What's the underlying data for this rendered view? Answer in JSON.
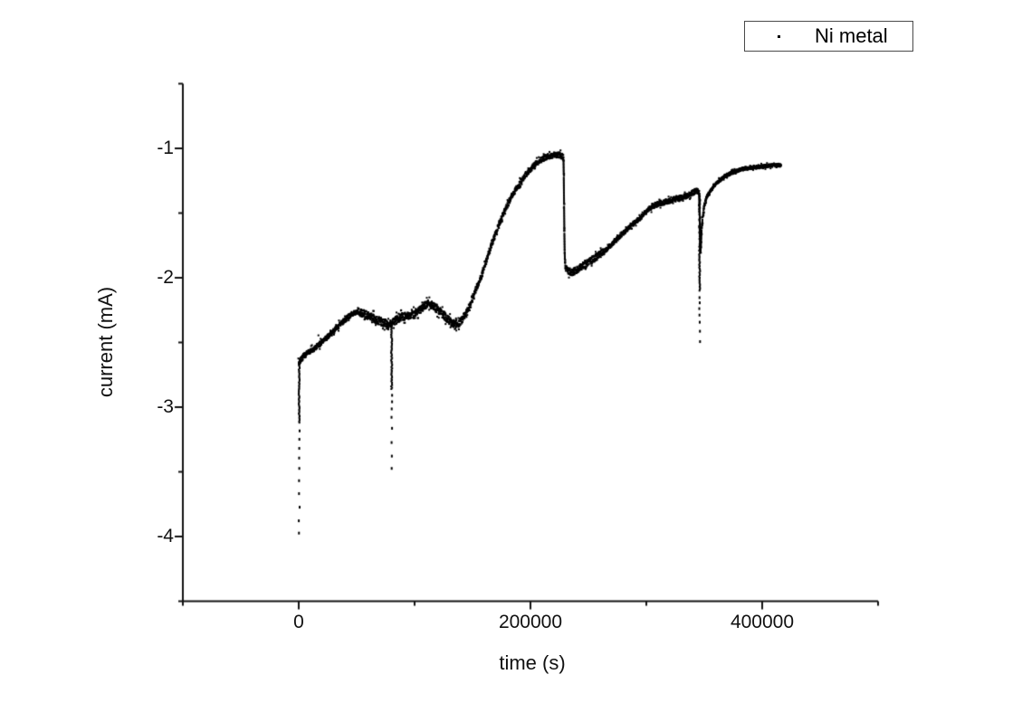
{
  "chart_data": {
    "type": "scatter",
    "title": "",
    "xlabel": "time (s)",
    "ylabel": "current (mA)",
    "xlim": [
      -100000,
      500000
    ],
    "ylim": [
      -4.5,
      -0.5
    ],
    "grid": false,
    "background": "#ffffff",
    "axis_color": "#131313",
    "point_color": "#000000",
    "marker": "small-square",
    "marker_size_px": 2,
    "x_ticks": {
      "major_values": [
        0,
        200000,
        400000
      ],
      "major_labels": [
        "0",
        "200000",
        "400000"
      ],
      "minor_values": [
        -100000,
        100000,
        300000,
        500000
      ]
    },
    "y_ticks": {
      "major_values": [
        -1,
        -2,
        -3,
        -4
      ],
      "major_labels": [
        "-1",
        "-2",
        "-3",
        "-4"
      ],
      "minor_values": [
        -0.5,
        -1.5,
        -2.5,
        -3.5,
        -4.5
      ]
    },
    "legend": {
      "label": "Ni metal",
      "position": "top-right",
      "boxed": true,
      "marker_color": "#000000"
    },
    "series": [
      {
        "name": "Ni metal",
        "keypoints": [
          [
            0,
            -2.66
          ],
          [
            2000,
            -2.63
          ],
          [
            5000,
            -2.6
          ],
          [
            9000,
            -2.575
          ],
          [
            13000,
            -2.55
          ],
          [
            17000,
            -2.52
          ],
          [
            21000,
            -2.49
          ],
          [
            25000,
            -2.455
          ],
          [
            29000,
            -2.42
          ],
          [
            33000,
            -2.385
          ],
          [
            37000,
            -2.35
          ],
          [
            41000,
            -2.32
          ],
          [
            45000,
            -2.29
          ],
          [
            48000,
            -2.27
          ],
          [
            51000,
            -2.26
          ],
          [
            54000,
            -2.27
          ],
          [
            58000,
            -2.285
          ],
          [
            62000,
            -2.3
          ],
          [
            66000,
            -2.32
          ],
          [
            70000,
            -2.335
          ],
          [
            74000,
            -2.35
          ],
          [
            78500,
            -2.36
          ],
          [
            81500,
            -2.34
          ],
          [
            86000,
            -2.315
          ],
          [
            90000,
            -2.3
          ],
          [
            95000,
            -2.29
          ],
          [
            100000,
            -2.275
          ],
          [
            104000,
            -2.25
          ],
          [
            108000,
            -2.22
          ],
          [
            112000,
            -2.2
          ],
          [
            116000,
            -2.215
          ],
          [
            120000,
            -2.245
          ],
          [
            124000,
            -2.28
          ],
          [
            128000,
            -2.315
          ],
          [
            131500,
            -2.345
          ],
          [
            135000,
            -2.36
          ],
          [
            138000,
            -2.355
          ],
          [
            141000,
            -2.33
          ],
          [
            145000,
            -2.27
          ],
          [
            149000,
            -2.185
          ],
          [
            153000,
            -2.09
          ],
          [
            157000,
            -2.0
          ],
          [
            161000,
            -1.9
          ],
          [
            165000,
            -1.78
          ],
          [
            169000,
            -1.68
          ],
          [
            173000,
            -1.585
          ],
          [
            177000,
            -1.5
          ],
          [
            181000,
            -1.42
          ],
          [
            185000,
            -1.355
          ],
          [
            189000,
            -1.295
          ],
          [
            193000,
            -1.24
          ],
          [
            197000,
            -1.19
          ],
          [
            201000,
            -1.15
          ],
          [
            205000,
            -1.115
          ],
          [
            209000,
            -1.09
          ],
          [
            213000,
            -1.07
          ],
          [
            217000,
            -1.058
          ],
          [
            221000,
            -1.05
          ],
          [
            225000,
            -1.052
          ],
          [
            227500,
            -1.06
          ],
          [
            228600,
            -1.08
          ],
          [
            228900,
            -1.35
          ],
          [
            229200,
            -1.62
          ],
          [
            229600,
            -1.85
          ],
          [
            230200,
            -1.92
          ],
          [
            233000,
            -1.955
          ],
          [
            236000,
            -1.96
          ],
          [
            239000,
            -1.945
          ],
          [
            243000,
            -1.92
          ],
          [
            247000,
            -1.895
          ],
          [
            251000,
            -1.875
          ],
          [
            255000,
            -1.85
          ],
          [
            259000,
            -1.825
          ],
          [
            263000,
            -1.8
          ],
          [
            267000,
            -1.77
          ],
          [
            271000,
            -1.735
          ],
          [
            275000,
            -1.7
          ],
          [
            279000,
            -1.665
          ],
          [
            283000,
            -1.63
          ],
          [
            287000,
            -1.595
          ],
          [
            291000,
            -1.565
          ],
          [
            295000,
            -1.535
          ],
          [
            299000,
            -1.5
          ],
          [
            302000,
            -1.47
          ],
          [
            305000,
            -1.45
          ],
          [
            308000,
            -1.435
          ],
          [
            312000,
            -1.425
          ],
          [
            316000,
            -1.415
          ],
          [
            320000,
            -1.405
          ],
          [
            324000,
            -1.395
          ],
          [
            328000,
            -1.385
          ],
          [
            332000,
            -1.375
          ],
          [
            336000,
            -1.36
          ],
          [
            339000,
            -1.35
          ],
          [
            341500,
            -1.335
          ],
          [
            343500,
            -1.325
          ],
          [
            344800,
            -1.335
          ],
          [
            345500,
            -1.35
          ],
          [
            346800,
            -1.82
          ],
          [
            347600,
            -1.64
          ],
          [
            348600,
            -1.53
          ],
          [
            350000,
            -1.44
          ],
          [
            352000,
            -1.385
          ],
          [
            354500,
            -1.34
          ],
          [
            357500,
            -1.3
          ],
          [
            361000,
            -1.265
          ],
          [
            365000,
            -1.235
          ],
          [
            370000,
            -1.205
          ],
          [
            376000,
            -1.18
          ],
          [
            383000,
            -1.16
          ],
          [
            390000,
            -1.15
          ],
          [
            398000,
            -1.14
          ],
          [
            406000,
            -1.135
          ],
          [
            412000,
            -1.13
          ],
          [
            416000,
            -1.13
          ]
        ],
        "noise_regions": [
          [
            0,
            52000,
            0.02
          ],
          [
            52000,
            146000,
            0.03
          ],
          [
            146000,
            218000,
            0.02
          ],
          [
            218000,
            233000,
            0.022
          ],
          [
            233000,
            264000,
            0.026
          ],
          [
            264000,
            304000,
            0.016
          ],
          [
            304000,
            346000,
            0.02
          ],
          [
            346000,
            352000,
            0.014
          ],
          [
            352000,
            416000,
            0.012
          ]
        ],
        "spikes": [
          {
            "t": 400,
            "from": -2.66,
            "dense_to": -3.12,
            "sparse": [
              -3.18,
              -3.245,
              -3.315,
              -3.39,
              -3.47,
              -3.565,
              -3.665,
              -3.77,
              -3.875,
              -3.97
            ]
          },
          {
            "t": 80200,
            "from": -2.36,
            "dense_to": -2.86,
            "sparse": [
              -2.905,
              -2.955,
              -3.01,
              -3.075,
              -3.16,
              -3.27,
              -3.375,
              -3.47
            ]
          },
          {
            "t": 346000,
            "from": -1.35,
            "dense_to": -2.1,
            "sparse": [
              -2.15,
              -2.19,
              -2.235,
              -2.285,
              -2.34,
              -2.41,
              -2.49
            ]
          }
        ],
        "outliers": [
          [
            17000,
            -2.445
          ]
        ]
      }
    ]
  }
}
